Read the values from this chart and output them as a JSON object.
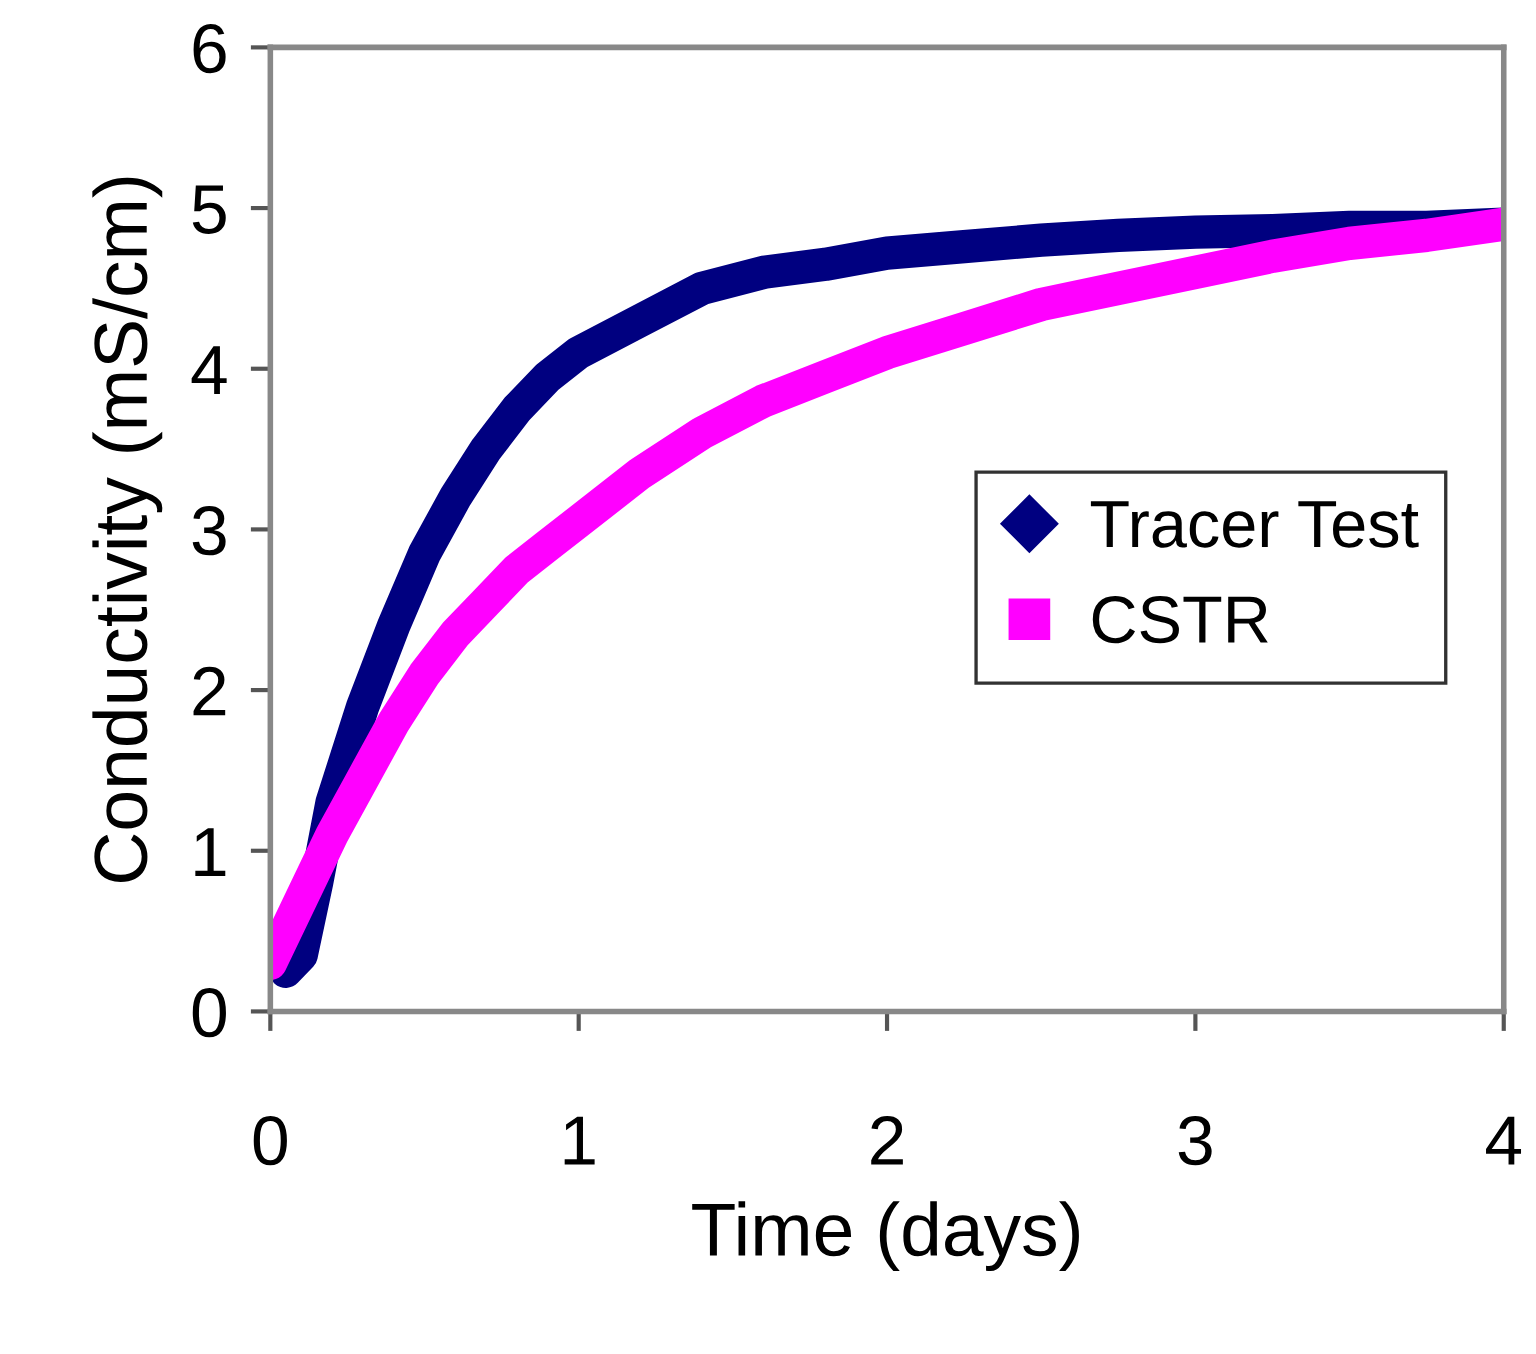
{
  "chart_data": {
    "type": "line",
    "xlabel": "Time (days)",
    "ylabel": "Conductivity (mS/cm)",
    "xlim": [
      0,
      4
    ],
    "ylim": [
      0,
      6
    ],
    "xticks": [
      0,
      1,
      2,
      3,
      4
    ],
    "yticks": [
      0,
      1,
      2,
      3,
      4,
      5,
      6
    ],
    "grid": false,
    "legend": "right",
    "series": [
      {
        "name": "Tracer Test",
        "color": "#000080",
        "marker": "diamond",
        "x": [
          0,
          0.05,
          0.1,
          0.15,
          0.2,
          0.3,
          0.4,
          0.5,
          0.6,
          0.7,
          0.8,
          0.9,
          1.0,
          1.2,
          1.4,
          1.6,
          1.8,
          2.0,
          2.25,
          2.5,
          2.75,
          3.0,
          3.25,
          3.5,
          3.75,
          4.0
        ],
        "values": [
          0.45,
          0.25,
          0.35,
          0.8,
          1.3,
          1.9,
          2.4,
          2.85,
          3.2,
          3.5,
          3.75,
          3.95,
          4.1,
          4.3,
          4.5,
          4.6,
          4.65,
          4.72,
          4.76,
          4.8,
          4.83,
          4.85,
          4.86,
          4.88,
          4.88,
          4.9
        ]
      },
      {
        "name": "CSTR",
        "color": "#ff00ff",
        "marker": "square",
        "x": [
          0,
          0.1,
          0.2,
          0.3,
          0.4,
          0.5,
          0.6,
          0.7,
          0.8,
          0.9,
          1.0,
          1.2,
          1.4,
          1.6,
          1.8,
          2.0,
          2.25,
          2.5,
          2.75,
          3.0,
          3.25,
          3.5,
          3.75,
          4.0
        ],
        "values": [
          0.3,
          0.7,
          1.1,
          1.45,
          1.8,
          2.1,
          2.35,
          2.55,
          2.75,
          2.9,
          3.05,
          3.35,
          3.6,
          3.8,
          3.95,
          4.1,
          4.25,
          4.4,
          4.5,
          4.6,
          4.7,
          4.78,
          4.83,
          4.9
        ]
      }
    ]
  }
}
